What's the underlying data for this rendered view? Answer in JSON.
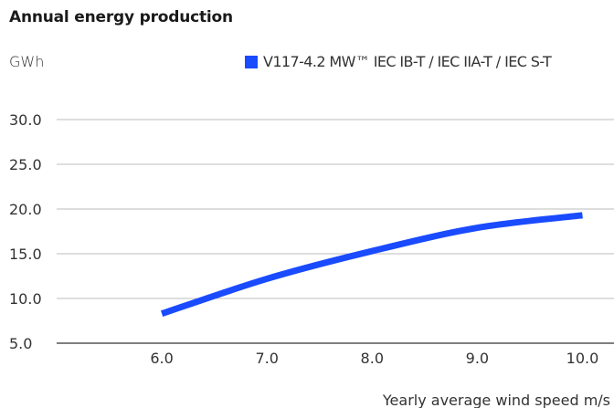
{
  "chart_data": {
    "type": "line",
    "title": "Annual energy production",
    "ylabel": "GWh",
    "xlabel": "Yearly average wind speed m/s",
    "x": [
      6.0,
      7.0,
      8.0,
      9.0,
      10.0
    ],
    "x_tick_labels": [
      "6.0",
      "7.0",
      "8.0",
      "9.0",
      "10.0"
    ],
    "y_ticks": [
      5.0,
      10.0,
      15.0,
      20.0,
      25.0,
      30.0
    ],
    "y_tick_labels": [
      "5.0",
      "10.0",
      "15.0",
      "20.0",
      "25.0",
      "30.0"
    ],
    "xlim": [
      5.0,
      10.3
    ],
    "ylim": [
      5.0,
      30.0
    ],
    "grid": true,
    "legend_position": "top-right",
    "series": [
      {
        "name": "V117-4.2 MW™ IEC IB-T / IEC IIA-T / IEC S-T",
        "color": "#1a4bff",
        "values": [
          8.3,
          12.2,
          15.3,
          17.9,
          19.3
        ]
      }
    ]
  }
}
